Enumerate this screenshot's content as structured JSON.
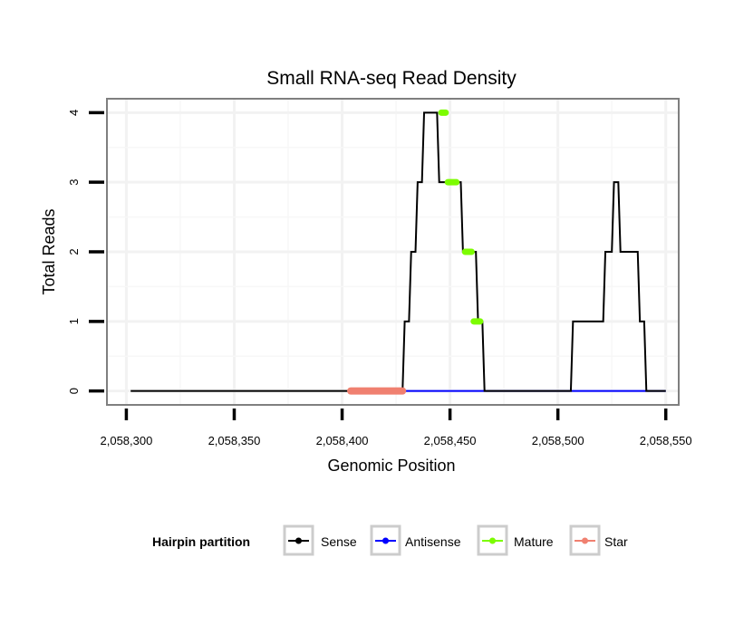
{
  "chart_data": {
    "type": "line",
    "title": "Small RNA-seq Read Density",
    "xlabel": "Genomic Position",
    "ylabel": "Total Reads",
    "xlim": [
      2058291,
      2058556
    ],
    "ylim": [
      -0.2,
      4.2
    ],
    "x_ticks": [
      2058300,
      2058350,
      2058400,
      2058450,
      2058500,
      2058550
    ],
    "x_tick_labels": [
      "2,058,300",
      "2,058,350",
      "2,058,400",
      "2,058,450",
      "2,058,500",
      "2,058,550"
    ],
    "y_ticks": [
      0,
      1,
      2,
      3,
      4
    ],
    "y_tick_labels": [
      "0",
      "1",
      "2",
      "3",
      "4"
    ],
    "grid": true,
    "series": [
      {
        "name": "Sense",
        "color": "#000000",
        "x": [
          2058302,
          2058428,
          2058429,
          2058431,
          2058432,
          2058434,
          2058435,
          2058437,
          2058438,
          2058444,
          2058445,
          2058455,
          2058456,
          2058462,
          2058463,
          2058465,
          2058466,
          2058506,
          2058507,
          2058521,
          2058522,
          2058525,
          2058526,
          2058528,
          2058529,
          2058537,
          2058538,
          2058540,
          2058541,
          2058550
        ],
        "y": [
          0,
          0,
          1,
          1,
          2,
          2,
          3,
          3,
          4,
          4,
          3,
          3,
          2,
          2,
          1,
          1,
          0,
          0,
          1,
          1,
          2,
          2,
          3,
          3,
          2,
          2,
          1,
          1,
          0,
          0
        ]
      },
      {
        "name": "Antisense",
        "color": "#0000ff",
        "x": [
          2058429,
          2058550
        ],
        "y": [
          0,
          0
        ]
      },
      {
        "name": "Mature",
        "color": "#7cfc00",
        "segments": [
          {
            "x_start": 2058446,
            "x_end": 2058448,
            "y": 4
          },
          {
            "x_start": 2058449,
            "x_end": 2058453,
            "y": 3
          },
          {
            "x_start": 2058457,
            "x_end": 2058460,
            "y": 2
          },
          {
            "x_start": 2058461,
            "x_end": 2058464,
            "y": 1
          }
        ]
      },
      {
        "name": "Star",
        "color": "#f08070",
        "segments": [
          {
            "x_start": 2058404,
            "x_end": 2058428,
            "y": 0
          }
        ]
      }
    ],
    "legend": {
      "title": "Hairpin partition",
      "position": "bottom",
      "entries": [
        "Sense",
        "Antisense",
        "Mature",
        "Star"
      ]
    }
  }
}
